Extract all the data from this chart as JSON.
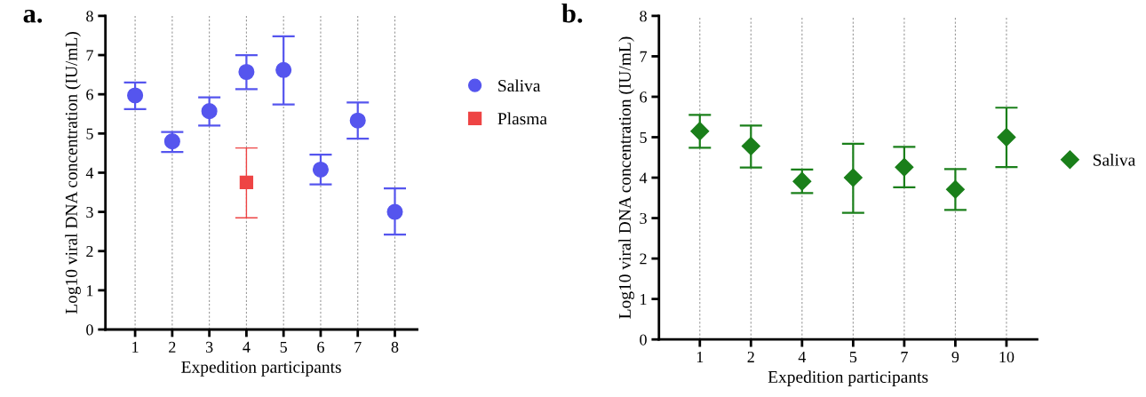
{
  "chart_data": [
    {
      "type": "scatter",
      "title": "a.",
      "xlabel": "Expedition participants",
      "ylabel": "Log10 viral DNA concentration (IU/mL)",
      "categories": [
        "1",
        "2",
        "3",
        "4",
        "5",
        "6",
        "7",
        "8"
      ],
      "series": [
        {
          "name": "Saliva",
          "color": "#5555ee",
          "marker": "circle",
          "values": [
            5.97,
            4.8,
            5.57,
            6.57,
            6.62,
            4.08,
            5.33,
            3.0
          ],
          "errors": [
            [
              5.62,
              6.3
            ],
            [
              4.53,
              5.04
            ],
            [
              5.2,
              5.92
            ],
            [
              6.13,
              7.0
            ],
            [
              5.74,
              7.48
            ],
            [
              3.7,
              4.46
            ],
            [
              4.87,
              5.79
            ],
            [
              2.42,
              3.6
            ]
          ]
        },
        {
          "name": "Plasma",
          "color": "#ee4444",
          "marker": "square",
          "values": [
            null,
            null,
            null,
            3.75,
            null,
            null,
            null,
            null
          ],
          "errors": [
            null,
            null,
            null,
            [
              2.85,
              4.63
            ],
            null,
            null,
            null,
            null
          ]
        }
      ],
      "ylim": [
        0,
        8
      ],
      "yticks": [
        0,
        1,
        2,
        3,
        4,
        5,
        6,
        7,
        8
      ],
      "grid": "x",
      "legend": "right"
    },
    {
      "type": "scatter",
      "title": "b.",
      "xlabel": "Expedition participants",
      "ylabel": "Log10 viral DNA concentration (IU/mL)",
      "categories": [
        "1",
        "2",
        "4",
        "5",
        "7",
        "9",
        "10"
      ],
      "series": [
        {
          "name": "Saliva",
          "color": "#1a7f1a",
          "marker": "diamond",
          "values": [
            5.15,
            4.78,
            3.91,
            4.0,
            4.26,
            3.71,
            5.0
          ],
          "errors": [
            [
              4.74,
              5.55
            ],
            [
              4.25,
              5.29
            ],
            [
              3.62,
              4.2
            ],
            [
              3.13,
              4.84
            ],
            [
              3.76,
              4.76
            ],
            [
              3.2,
              4.21
            ],
            [
              4.26,
              5.73
            ]
          ]
        }
      ],
      "ylim": [
        0,
        8
      ],
      "yticks": [
        0,
        1,
        2,
        3,
        4,
        5,
        6,
        7,
        8
      ],
      "grid": "x",
      "legend": "right"
    }
  ]
}
